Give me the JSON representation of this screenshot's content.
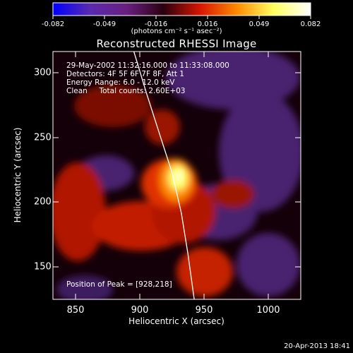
{
  "colorbar": {
    "ticks": [
      "-0.082",
      "-0.049",
      "-0.016",
      "0.016",
      "0.049",
      "0.082"
    ],
    "units": "(photons cm⁻² s⁻¹ asec⁻²)",
    "colors": [
      "#0000ff",
      "#5a2ab0",
      "#6a1f80",
      "#2b0010",
      "#d81500",
      "#ff8a00",
      "#ffff60",
      "#ffffff"
    ]
  },
  "chart_data": {
    "type": "heatmap",
    "title": "Reconstructed RHESSI Image",
    "xlabel": "Heliocentric X (arcsec)",
    "ylabel": "Heliocentric Y (arcsec)",
    "xlim": [
      832,
      1025
    ],
    "ylim": [
      125,
      312
    ],
    "xticks": [
      "850",
      "900",
      "950",
      "1000"
    ],
    "yticks": [
      "150",
      "200",
      "250",
      "300"
    ],
    "info_lines": [
      "29-May-2002 11:32:16.000 to 11:33:08.000",
      "Detectors: 4F 5F 6F 7F 8F, Att 1",
      "Energy Range: 6.0 - 12.0 keV",
      "Clean     Total counts: 2.60E+03"
    ],
    "peak_label": "Position of Peak = [928,218]",
    "peak": [
      928,
      218
    ],
    "limb_curve": [
      [
        895,
        312
      ],
      [
        905,
        280
      ],
      [
        915,
        250
      ],
      [
        925,
        220
      ],
      [
        932,
        190
      ],
      [
        937,
        160
      ],
      [
        942,
        125
      ]
    ]
  },
  "footer": {
    "timestamp": "20-Apr-2013 18:41"
  }
}
